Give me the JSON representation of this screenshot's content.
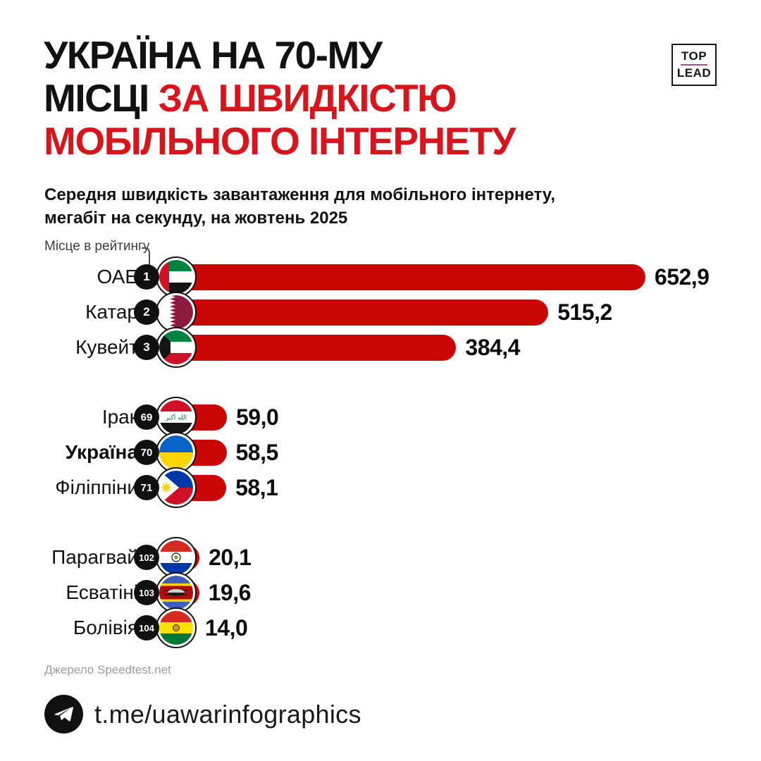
{
  "header": {
    "title_line1": "УКРАЇНА НА 70-МУ",
    "title_line2_black": "МІСЦІ ",
    "title_line2_red": "ЗА ШВИДКІСТЮ",
    "title_line3_red": "МОБІЛЬНОГО ІНТЕРНЕТУ",
    "logo_top": "TOP",
    "logo_lead": "LEAD"
  },
  "subtitle_line1": "Середня швидкість завантаження для мобільного інтернету,",
  "subtitle_line2": "мегабіт на секунду, на жовтень 2025",
  "chart_data": {
    "type": "bar",
    "orientation": "horizontal",
    "unit": "Мбіт/с",
    "annotation": "Місце в рейтингу",
    "bar_color": "#c90602",
    "xlim": [
      0,
      670
    ],
    "rows": [
      {
        "rank": "1",
        "country": "ОАЕ",
        "value": 652.9,
        "value_label": "652,9",
        "flag": "uae",
        "bold": false
      },
      {
        "rank": "2",
        "country": "Катар",
        "value": 515.2,
        "value_label": "515,2",
        "flag": "qatar",
        "bold": false
      },
      {
        "rank": "3",
        "country": "Кувейт",
        "value": 384.4,
        "value_label": "384,4",
        "flag": "kuwait",
        "bold": false
      },
      {
        "rank": "69",
        "country": "Ірак",
        "value": 59.0,
        "value_label": "59,0",
        "flag": "iraq",
        "bold": false
      },
      {
        "rank": "70",
        "country": "Україна",
        "value": 58.5,
        "value_label": "58,5",
        "flag": "ukraine",
        "bold": true
      },
      {
        "rank": "71",
        "country": "Філіппіни",
        "value": 58.1,
        "value_label": "58,1",
        "flag": "philippines",
        "bold": false
      },
      {
        "rank": "102",
        "country": "Парагвай",
        "value": 20.1,
        "value_label": "20,1",
        "flag": "paraguay",
        "bold": false
      },
      {
        "rank": "103",
        "country": "Есватіні",
        "value": 19.6,
        "value_label": "19,6",
        "flag": "eswatini",
        "bold": false
      },
      {
        "rank": "104",
        "country": "Болівія",
        "value": 14.0,
        "value_label": "14,0",
        "flag": "bolivia",
        "bold": false
      }
    ]
  },
  "source": "Джерело Speedtest.net",
  "footer": {
    "link": "t.me/uawarinfographics"
  },
  "colors": {
    "title_red": "#d6161c",
    "bar_red": "#c90602",
    "logo_line": "#b5499c"
  }
}
